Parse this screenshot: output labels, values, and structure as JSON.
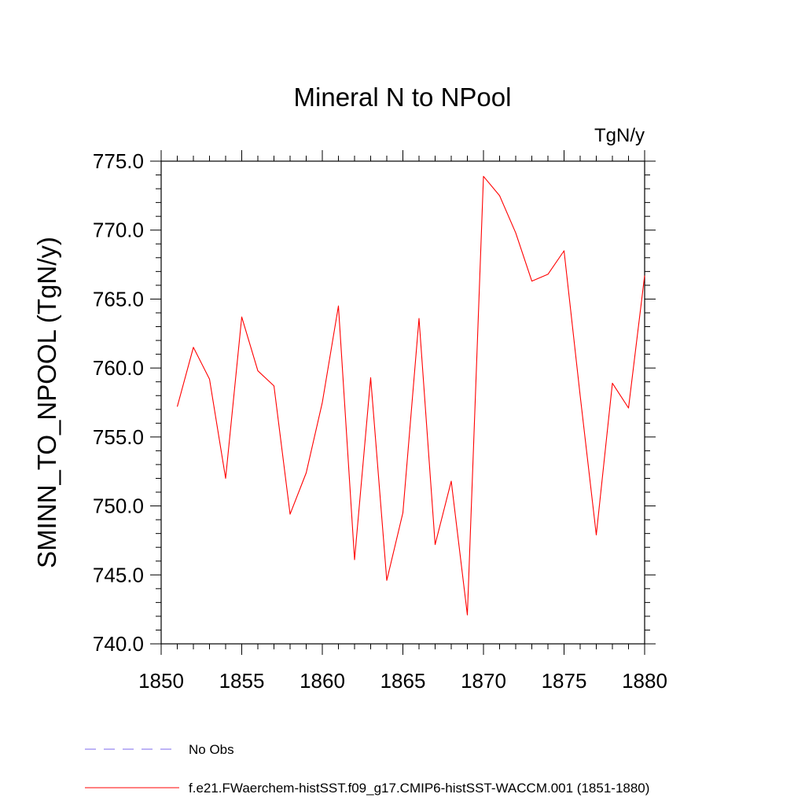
{
  "chart_data": {
    "type": "line",
    "title": "Mineral N to NPool",
    "units_label": "TgN/y",
    "ylabel": "SMINN_TO_NPOOL  (TgN/y)",
    "xlabel": "",
    "xlim": [
      1850,
      1880
    ],
    "ylim": [
      740.0,
      775.0
    ],
    "x_ticks": [
      1850,
      1855,
      1860,
      1865,
      1870,
      1875,
      1880
    ],
    "x_tick_labels": [
      "1850",
      "1855",
      "1860",
      "1865",
      "1870",
      "1875",
      "1880"
    ],
    "y_ticks": [
      740.0,
      745.0,
      750.0,
      755.0,
      760.0,
      765.0,
      770.0,
      775.0
    ],
    "y_tick_labels": [
      "740.0",
      "745.0",
      "750.0",
      "755.0",
      "760.0",
      "765.0",
      "770.0",
      "775.0"
    ],
    "grid": false,
    "legend_position": "bottom-left",
    "series": [
      {
        "name": "f.e21.FWaerchem-histSST.f09_g17.CMIP6-histSST-WACCM.001 (1851-1880)",
        "color": "#ff0000",
        "style": "solid",
        "x": [
          1851,
          1852,
          1853,
          1854,
          1855,
          1856,
          1857,
          1858,
          1859,
          1860,
          1861,
          1862,
          1863,
          1864,
          1865,
          1866,
          1867,
          1868,
          1869,
          1870,
          1871,
          1872,
          1873,
          1874,
          1875,
          1876,
          1877,
          1878,
          1879,
          1880
        ],
        "y": [
          757.2,
          761.5,
          759.2,
          752.0,
          763.7,
          759.8,
          758.7,
          749.4,
          752.4,
          757.5,
          764.5,
          746.1,
          759.3,
          744.6,
          749.5,
          763.6,
          747.2,
          751.8,
          742.1,
          773.9,
          772.5,
          769.8,
          766.3,
          766.8,
          768.5,
          758.0,
          747.9,
          758.9,
          757.1,
          766.7
        ]
      }
    ],
    "legend": [
      {
        "label": "No Obs",
        "color": "#7b68ee",
        "style": "dashed"
      },
      {
        "label": "f.e21.FWaerchem-histSST.f09_g17.CMIP6-histSST-WACCM.001 (1851-1880)",
        "color": "#ff0000",
        "style": "solid"
      }
    ]
  }
}
